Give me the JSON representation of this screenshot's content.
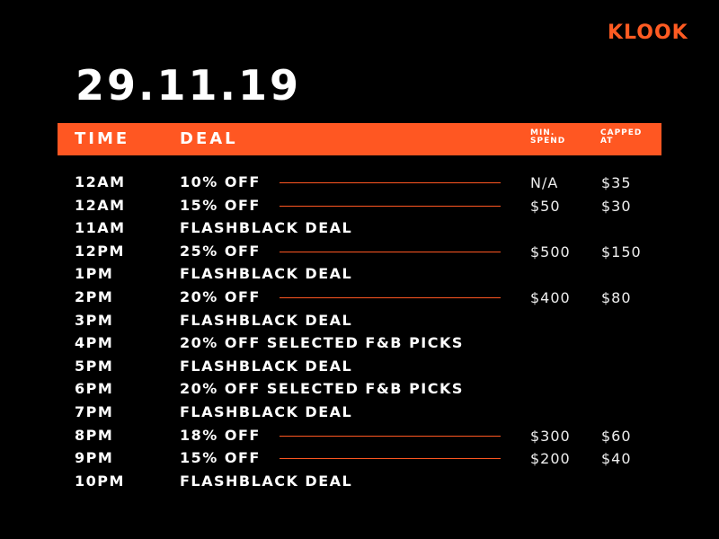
{
  "brand": "KLOOK",
  "date": "29.11.19",
  "table": {
    "headers": {
      "time": "TIME",
      "deal": "DEAL",
      "min_spend": "MIN. SPEND",
      "capped_at": "CAPPED AT"
    },
    "rows": [
      {
        "time": "12AM",
        "deal": "10% OFF",
        "min_spend": "N/A",
        "capped_at": "$35"
      },
      {
        "time": "12AM",
        "deal": "15% OFF",
        "min_spend": "$50",
        "capped_at": "$30"
      },
      {
        "time": "11AM",
        "deal": "FLASHBLACK DEAL"
      },
      {
        "time": "12PM",
        "deal": "25% OFF",
        "min_spend": "$500",
        "capped_at": "$150"
      },
      {
        "time": "1PM",
        "deal": "FLASHBLACK DEAL"
      },
      {
        "time": "2PM",
        "deal": "20% OFF",
        "min_spend": "$400",
        "capped_at": "$80"
      },
      {
        "time": "3PM",
        "deal": "FLASHBLACK DEAL"
      },
      {
        "time": "4PM",
        "deal": "20% OFF SELECTED F&B PICKS"
      },
      {
        "time": "5PM",
        "deal": "FLASHBLACK DEAL"
      },
      {
        "time": "6PM",
        "deal": "20% OFF SELECTED F&B PICKS"
      },
      {
        "time": "7PM",
        "deal": "FLASHBLACK DEAL"
      },
      {
        "time": "8PM",
        "deal": "18% OFF",
        "min_spend": "$300",
        "capped_at": "$60"
      },
      {
        "time": "9PM",
        "deal": "15% OFF",
        "min_spend": "$200",
        "capped_at": "$40"
      },
      {
        "time": "10PM",
        "deal": "FLASHBLACK DEAL"
      }
    ]
  }
}
